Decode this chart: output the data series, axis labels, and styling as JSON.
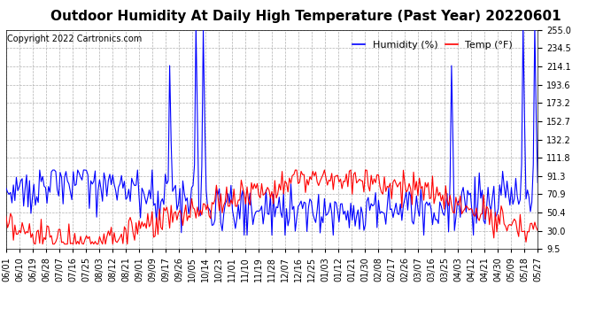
{
  "title": "Outdoor Humidity At Daily High Temperature (Past Year) 20220601",
  "copyright_text": "Copyright 2022 Cartronics.com",
  "legend_humidity": "Humidity (%)",
  "legend_temp": "Temp (°F)",
  "humidity_color": "#0000ff",
  "temp_color": "#ff0000",
  "bg_color": "#ffffff",
  "grid_color": "#b0b0b0",
  "yticks": [
    9.5,
    30.0,
    50.4,
    70.9,
    91.3,
    111.8,
    132.2,
    152.7,
    173.2,
    193.6,
    214.1,
    234.5,
    255.0
  ],
  "ylim": [
    9.5,
    255.0
  ],
  "xtick_labels": [
    "06/01",
    "06/10",
    "06/19",
    "06/28",
    "07/07",
    "07/16",
    "07/25",
    "08/03",
    "08/12",
    "08/21",
    "09/01",
    "09/09",
    "09/17",
    "09/26",
    "10/05",
    "10/14",
    "10/23",
    "11/01",
    "11/10",
    "11/19",
    "11/28",
    "12/07",
    "12/16",
    "12/25",
    "01/03",
    "01/12",
    "01/21",
    "01/30",
    "02/08",
    "02/17",
    "02/26",
    "03/07",
    "03/16",
    "03/25",
    "04/03",
    "04/12",
    "04/21",
    "04/30",
    "05/09",
    "05/18",
    "05/27"
  ],
  "title_fontsize": 11,
  "axis_fontsize": 7,
  "copyright_fontsize": 7,
  "legend_fontsize": 8,
  "line_width": 0.8
}
